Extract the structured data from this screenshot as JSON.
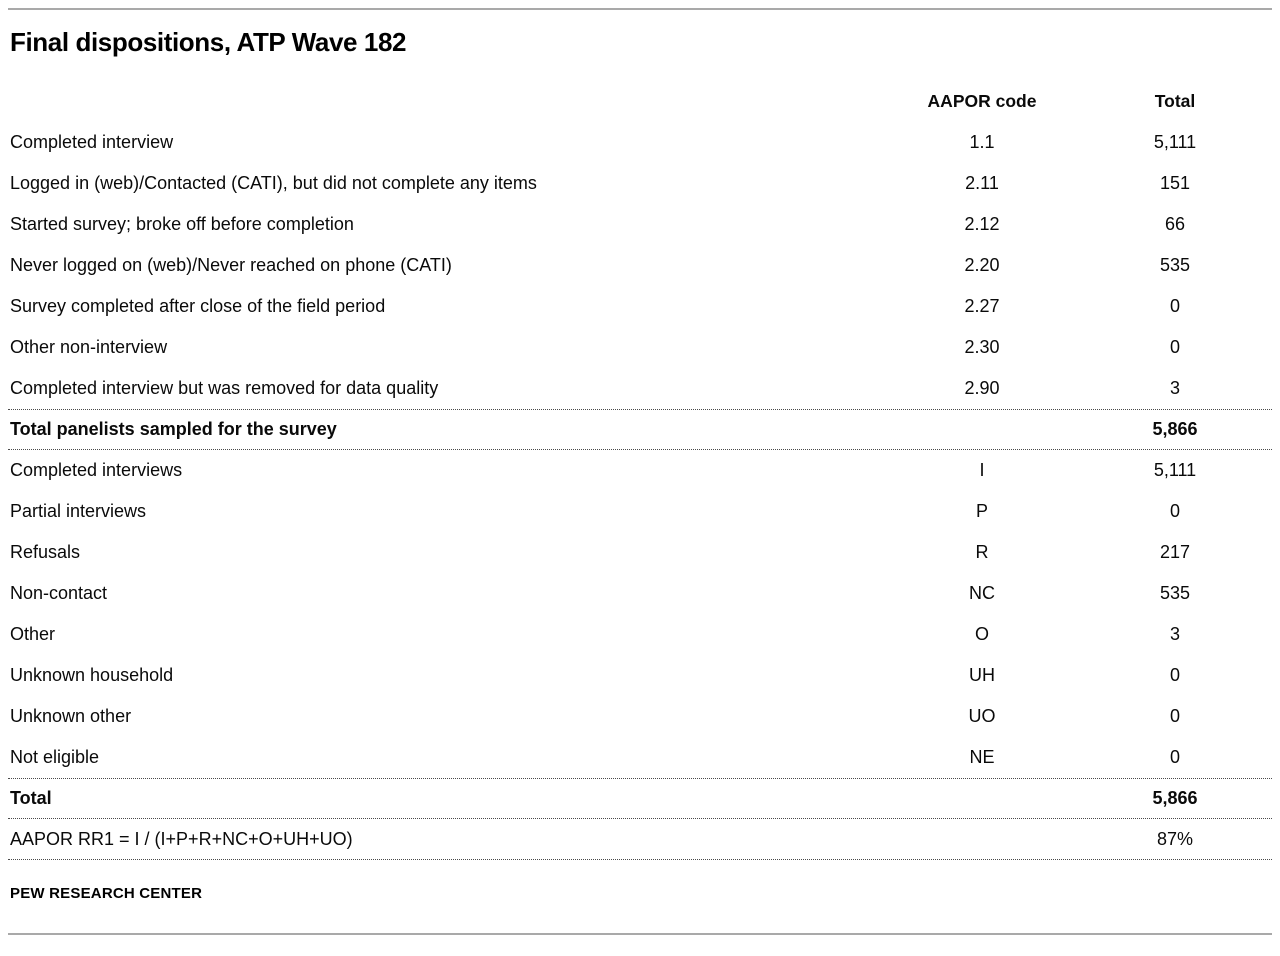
{
  "title": "Final dispositions, ATP Wave 182",
  "source": "PEW RESEARCH CENTER",
  "colors": {
    "text": "#0a0a0a",
    "rule_gray": "#a9a9a9",
    "divider_dotted": "#4a4a4a",
    "background": "#ffffff"
  },
  "table": {
    "columns": [
      "",
      "AAPOR code",
      "Total"
    ],
    "rows": [
      {
        "label": "Completed interview",
        "code": "1.1",
        "total": "5,111"
      },
      {
        "label": "Logged in (web)/Contacted (CATI), but did not complete any items",
        "code": "2.11",
        "total": "151"
      },
      {
        "label": "Started survey; broke off before completion",
        "code": "2.12",
        "total": "66"
      },
      {
        "label": "Never logged on (web)/Never reached on phone (CATI)",
        "code": "2.20",
        "total": "535"
      },
      {
        "label": "Survey completed after close of the field period",
        "code": "2.27",
        "total": "0"
      },
      {
        "label": "Other non-interview",
        "code": "2.30",
        "total": "0"
      },
      {
        "label": "Completed interview but was removed for data quality",
        "code": "2.90",
        "total": "3"
      },
      {
        "label": "Total panelists sampled for the survey",
        "code": "",
        "total": "5,866",
        "bold": true,
        "divider_top": true,
        "divider_bottom": true
      },
      {
        "label": "Completed interviews",
        "code": "I",
        "total": "5,111"
      },
      {
        "label": "Partial interviews",
        "code": "P",
        "total": "0"
      },
      {
        "label": "Refusals",
        "code": "R",
        "total": "217"
      },
      {
        "label": "Non-contact",
        "code": "NC",
        "total": "535"
      },
      {
        "label": "Other",
        "code": "O",
        "total": "3"
      },
      {
        "label": "Unknown household",
        "code": "UH",
        "total": "0"
      },
      {
        "label": "Unknown other",
        "code": "UO",
        "total": "0"
      },
      {
        "label": "Not eligible",
        "code": "NE",
        "total": "0"
      },
      {
        "label": "Total",
        "code": "",
        "total": "5,866",
        "bold": true,
        "divider_top": true,
        "divider_bottom": true
      },
      {
        "label": "AAPOR RR1 = I / (I+P+R+NC+O+UH+UO)",
        "code": "",
        "total": "87%",
        "divider_bottom": true
      }
    ]
  }
}
